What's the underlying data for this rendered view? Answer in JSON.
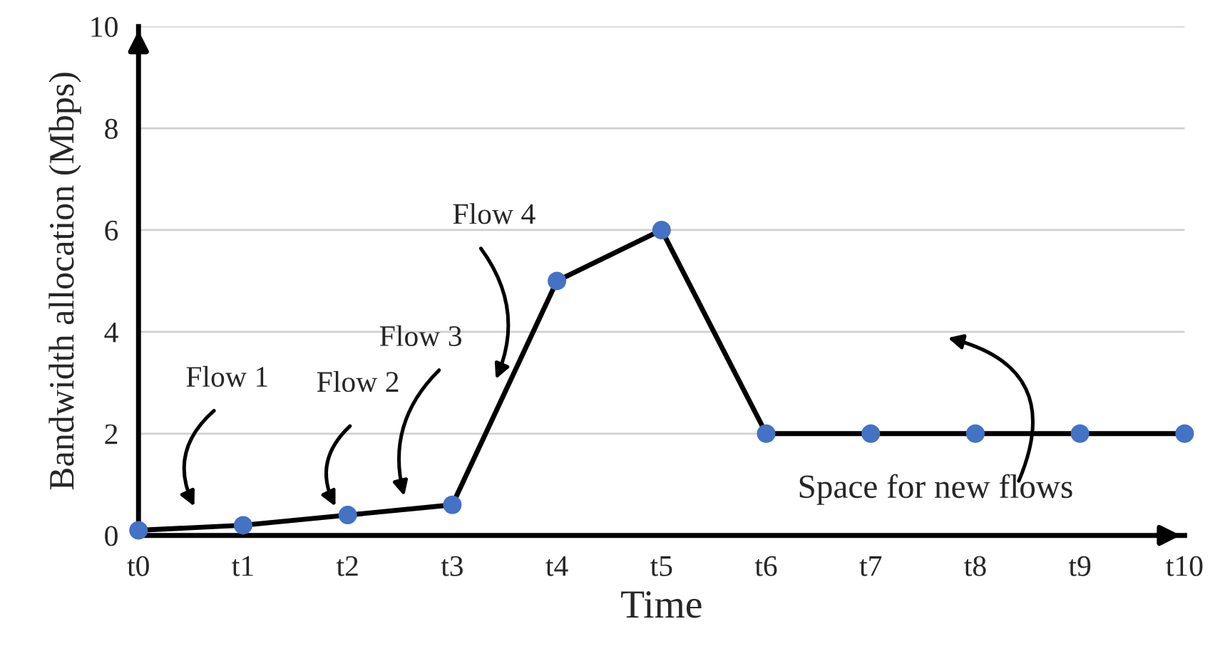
{
  "chart_data": {
    "type": "line",
    "xlabel": "Time",
    "ylabel": "Bandwidth allocation (Mbps)",
    "categories": [
      "t0",
      "t1",
      "t2",
      "t3",
      "t4",
      "t5",
      "t6",
      "t7",
      "t8",
      "t9",
      "t10"
    ],
    "series": [
      {
        "color": "#4472c4",
        "values": [
          0.1,
          0.2,
          0.4,
          0.6,
          5,
          6,
          2,
          2,
          2,
          2,
          2
        ]
      }
    ],
    "ylim": [
      0,
      10
    ],
    "yticks": [
      0,
      2,
      4,
      6,
      8,
      10
    ],
    "grid": "y",
    "marker": "circle",
    "line_style": "solid",
    "legend": false,
    "annotations": [
      "Flow 1",
      "Flow 2",
      "Flow 3",
      "Flow 4",
      "Space for new flows"
    ]
  }
}
